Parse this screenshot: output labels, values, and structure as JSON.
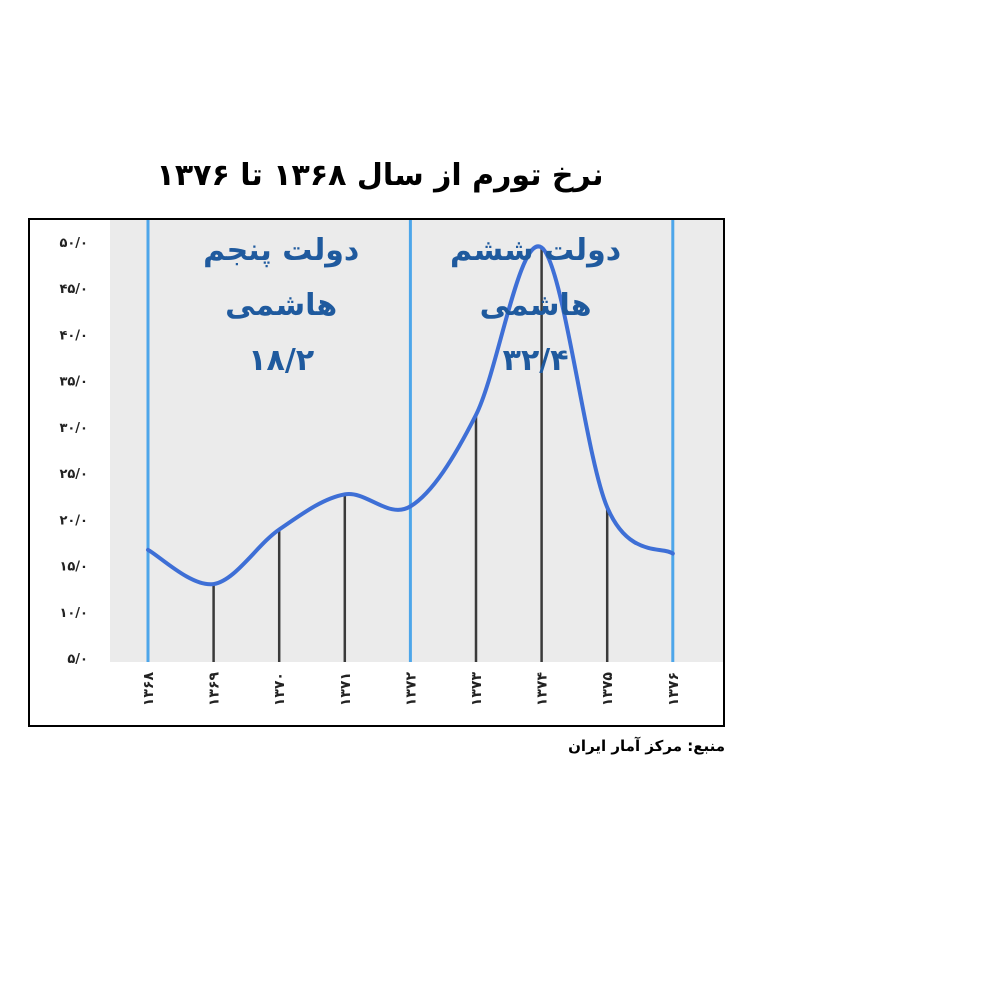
{
  "chart_data": {
    "type": "line",
    "title": "نرخ تورم از سال ۱۳۶۸ تا ۱۳۷۶",
    "source": "منبع: مرکز آمار ایران",
    "categories": [
      "۱۳۶۸",
      "۱۳۶۹",
      "۱۳۷۰",
      "۱۳۷۱",
      "۱۳۷۲",
      "۱۳۷۳",
      "۱۳۷۴",
      "۱۳۷۵",
      "۱۳۷۶"
    ],
    "x": [
      1368,
      1369,
      1370,
      1371,
      1372,
      1373,
      1374,
      1375,
      1376
    ],
    "series": [
      {
        "values": [
          16.7,
          13.0,
          18.9,
          22.7,
          21.4,
          31.3,
          49.4,
          21.3,
          16.3
        ]
      }
    ],
    "y_ticks": [
      "۵/۰",
      "۱۰/۰",
      "۱۵/۰",
      "۲۰/۰",
      "۲۵/۰",
      "۳۰/۰",
      "۳۵/۰",
      "۴۰/۰",
      "۴۵/۰",
      "۵۰/۰"
    ],
    "y_tick_values": [
      5,
      10,
      15,
      20,
      25,
      30,
      35,
      40,
      45,
      50
    ],
    "ylim": [
      5,
      50
    ],
    "period_dividers": [
      1368,
      1372,
      1376
    ],
    "annotations": [
      {
        "lines": [
          "دولت پنجم",
          "هاشمی",
          "۱۸/۲"
        ],
        "period": [
          1368,
          1372
        ]
      },
      {
        "lines": [
          "دولت ششم",
          "هاشمی",
          "۳۲/۴"
        ],
        "period": [
          1372,
          1376
        ]
      }
    ],
    "grid": false,
    "colors": {
      "line": "#3e6fd6",
      "divider": "#4da6ea",
      "drop_line": "#3a3a3a",
      "plot_background": "#ebebeb",
      "annotation_text": "#1f5a9e"
    }
  }
}
